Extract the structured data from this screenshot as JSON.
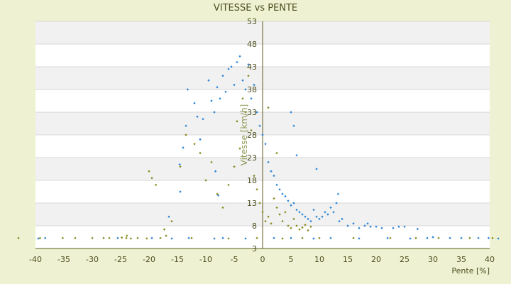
{
  "chart_data": {
    "type": "scatter",
    "title": "VITESSE vs PENTE",
    "xlabel": "Pente [%]",
    "ylabel": "Vitesse [km/h]",
    "xlim": [
      -40,
      40
    ],
    "ylim": [
      3,
      53
    ],
    "x_ticks": [
      "-40",
      "-35",
      "-30",
      "-25",
      "-20",
      "-15",
      "-10",
      "-5",
      "0",
      "5",
      "10",
      "15",
      "20",
      "25",
      "30",
      "35",
      "40"
    ],
    "y_ticks": [
      "3",
      "8",
      "13",
      "18",
      "23",
      "28",
      "33",
      "38",
      "43",
      "48",
      "53"
    ],
    "grid": true,
    "legend": "none",
    "series": [
      {
        "color": "#2e86d6",
        "points": [
          [
            -38.3,
            5.3
          ],
          [
            -39.5,
            5.2
          ],
          [
            -16.5,
            10
          ],
          [
            -14.5,
            15.5
          ],
          [
            -14.6,
            21.5
          ],
          [
            -14,
            25.2
          ],
          [
            -13.5,
            30
          ],
          [
            -13.2,
            38
          ],
          [
            -12,
            35
          ],
          [
            -11.5,
            32
          ],
          [
            -11,
            27
          ],
          [
            -10.5,
            31.5
          ],
          [
            -9.5,
            40
          ],
          [
            -9,
            35.5
          ],
          [
            -8.5,
            33
          ],
          [
            -8,
            38.5
          ],
          [
            -7.5,
            36
          ],
          [
            -7,
            41
          ],
          [
            -6.5,
            37.5
          ],
          [
            -6,
            42.5
          ],
          [
            -5.5,
            43
          ],
          [
            -5,
            39
          ],
          [
            -4.5,
            44
          ],
          [
            -4,
            45.3
          ],
          [
            -3.5,
            40
          ],
          [
            -3,
            38
          ],
          [
            -2.5,
            43.5
          ],
          [
            -2,
            36
          ],
          [
            -1.5,
            39
          ],
          [
            -1,
            33
          ],
          [
            -0.5,
            30
          ],
          [
            0,
            28
          ],
          [
            0.5,
            26
          ],
          [
            1,
            22
          ],
          [
            1.5,
            20
          ],
          [
            2,
            19
          ],
          [
            2.5,
            17
          ],
          [
            3,
            16
          ],
          [
            3.5,
            15
          ],
          [
            4,
            14.5
          ],
          [
            4.5,
            13.5
          ],
          [
            5,
            12.5
          ],
          [
            5.5,
            13
          ],
          [
            6,
            11.5
          ],
          [
            6.5,
            11
          ],
          [
            7,
            10.5
          ],
          [
            7.5,
            10
          ],
          [
            8,
            9.5
          ],
          [
            8.5,
            9
          ],
          [
            9,
            11.5
          ],
          [
            9.5,
            10
          ],
          [
            10,
            9.5
          ],
          [
            10.5,
            10
          ],
          [
            11,
            11
          ],
          [
            11.5,
            10.5
          ],
          [
            12,
            12
          ],
          [
            12.5,
            11
          ],
          [
            13,
            13
          ],
          [
            13.3,
            15
          ],
          [
            13.5,
            9
          ],
          [
            14,
            9.5
          ],
          [
            15,
            8
          ],
          [
            16,
            8.5
          ],
          [
            17,
            7.5
          ],
          [
            18,
            8
          ],
          [
            18.5,
            8.5
          ],
          [
            19,
            7.8
          ],
          [
            20,
            7.8
          ],
          [
            21,
            7.5
          ],
          [
            23,
            7.5
          ],
          [
            24,
            7.8
          ],
          [
            25,
            7.8
          ],
          [
            27.3,
            7.3
          ],
          [
            30,
            5.5
          ],
          [
            33,
            5.3
          ],
          [
            35,
            5.3
          ],
          [
            38,
            5.3
          ],
          [
            39.8,
            5.3
          ],
          [
            41.5,
            5.2
          ],
          [
            -8.5,
            5.2
          ],
          [
            -7,
            5.3
          ],
          [
            -3,
            5.2
          ],
          [
            2,
            5.3
          ],
          [
            5,
            5.3
          ],
          [
            9,
            5.2
          ],
          [
            12,
            5.3
          ],
          [
            17,
            5.2
          ],
          [
            22,
            5.3
          ],
          [
            26,
            5.2
          ],
          [
            29,
            5.3
          ],
          [
            -25.5,
            5.3
          ],
          [
            -19.5,
            5.3
          ],
          [
            -16,
            5.2
          ],
          [
            -13,
            5.3
          ],
          [
            9.5,
            20.5
          ],
          [
            6,
            23.5
          ],
          [
            5,
            33
          ],
          [
            5.5,
            30
          ],
          [
            -8.3,
            20
          ],
          [
            -7.8,
            14.7
          ]
        ]
      },
      {
        "color": "#8a8a22",
        "points": [
          [
            -43,
            5.3
          ],
          [
            -39.2,
            5.3
          ],
          [
            -35.2,
            5.3
          ],
          [
            -28,
            5.3
          ],
          [
            -27,
            5.3
          ],
          [
            -24.8,
            5.4
          ],
          [
            -24,
            5.3
          ],
          [
            -23.9,
            5.8
          ],
          [
            -23.2,
            5.2
          ],
          [
            -20.4,
            5.2
          ],
          [
            -20,
            20
          ],
          [
            -19.5,
            18.5
          ],
          [
            -18.8,
            17
          ],
          [
            -17.3,
            7.2
          ],
          [
            -17,
            5.8
          ],
          [
            -16,
            9
          ],
          [
            -14.5,
            21
          ],
          [
            -13.5,
            28
          ],
          [
            -12,
            26
          ],
          [
            -11,
            24
          ],
          [
            -10,
            18
          ],
          [
            -9,
            22
          ],
          [
            -8,
            15
          ],
          [
            -7,
            12
          ],
          [
            -6,
            17
          ],
          [
            -5,
            21
          ],
          [
            -4,
            25
          ],
          [
            -3,
            33
          ],
          [
            -2,
            29
          ],
          [
            -1.5,
            19
          ],
          [
            -1,
            16
          ],
          [
            -0.5,
            13
          ],
          [
            0,
            11
          ],
          [
            0.5,
            9
          ],
          [
            1,
            10
          ],
          [
            1.5,
            8.5
          ],
          [
            2,
            14
          ],
          [
            2.5,
            12
          ],
          [
            3,
            10.5
          ],
          [
            3.5,
            9
          ],
          [
            4,
            11
          ],
          [
            4.5,
            8
          ],
          [
            5,
            7.5
          ],
          [
            5.5,
            9.5
          ],
          [
            6,
            8
          ],
          [
            6.5,
            7.2
          ],
          [
            7,
            7.6
          ],
          [
            7.5,
            8.2
          ],
          [
            8,
            7
          ],
          [
            8.5,
            7.8
          ],
          [
            -33,
            5.3
          ],
          [
            -30,
            5.3
          ],
          [
            -22,
            5.3
          ],
          [
            -18,
            5.3
          ],
          [
            -12.5,
            5.3
          ],
          [
            -6,
            5.2
          ],
          [
            -1,
            5.3
          ],
          [
            3.5,
            5.2
          ],
          [
            7,
            5.3
          ],
          [
            10,
            5.3
          ],
          [
            16,
            5.3
          ],
          [
            22.5,
            5.3
          ],
          [
            27,
            5.3
          ],
          [
            31,
            5.3
          ],
          [
            36.5,
            5.3
          ],
          [
            40.5,
            5.3
          ],
          [
            -2.5,
            41
          ],
          [
            -3.5,
            36
          ],
          [
            -4.5,
            31
          ],
          [
            1,
            34
          ],
          [
            2.5,
            24
          ]
        ]
      }
    ]
  }
}
